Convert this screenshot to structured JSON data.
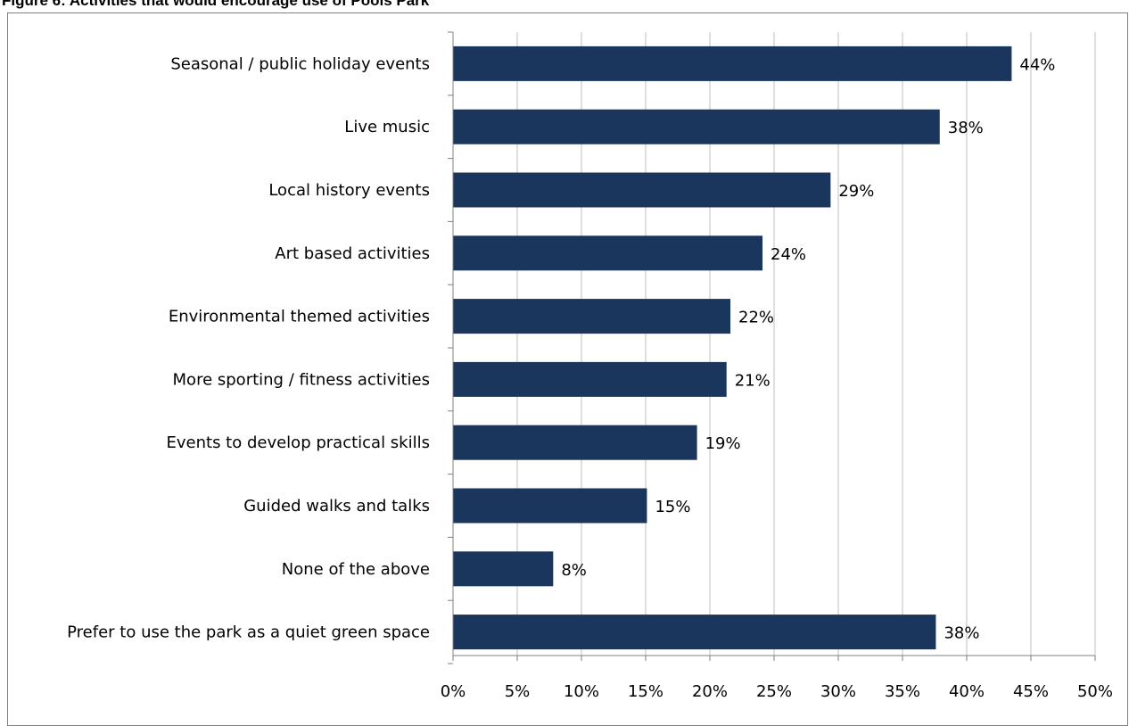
{
  "chart_data": {
    "type": "bar",
    "orientation": "horizontal",
    "title": "Figure 6: Activities that would encourage use of Pools Park",
    "categories": [
      "Seasonal / public holiday events",
      "Live music",
      "Local history events",
      "Art based activities",
      "Environmental themed activities",
      "More sporting / fitness activities",
      "Events to develop practical skills",
      "Guided walks and talks",
      "None of the above",
      "Prefer to use the park as a quiet green space"
    ],
    "values": [
      43.5,
      37.9,
      29.4,
      24.1,
      21.6,
      21.3,
      19.0,
      15.1,
      7.8,
      37.6
    ],
    "data_labels": [
      "44%",
      "38%",
      "29%",
      "24%",
      "22%",
      "21%",
      "19%",
      "15%",
      "8%",
      "38%"
    ],
    "xlim": [
      0,
      50
    ],
    "x_ticks": [
      "0%",
      "5%",
      "10%",
      "15%",
      "20%",
      "25%",
      "30%",
      "35%",
      "40%",
      "45%",
      "50%"
    ],
    "grid": true,
    "bar_color": "#1b365d"
  }
}
